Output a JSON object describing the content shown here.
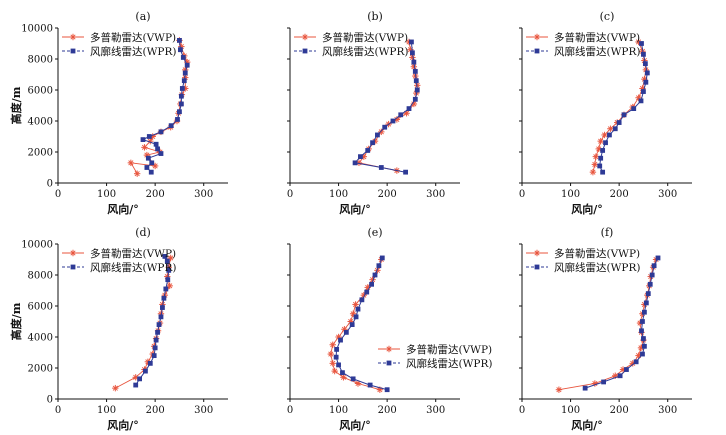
{
  "figure": {
    "legend_vwp": "多普勒雷达(VWP)",
    "legend_wpr": "风廓线雷达(WPR)",
    "xlabel": "风向/°",
    "ylabel": "高度/m",
    "colors": {
      "vwp": "#e8553e",
      "wpr": "#2e3a96"
    }
  },
  "chart_data": [
    {
      "type": "line",
      "label": "(a)",
      "legend_pos": "top-left",
      "xlim": [
        0,
        350
      ],
      "ylim": [
        0,
        10000
      ],
      "xticks": [
        "0",
        "100",
        "200",
        "300"
      ],
      "yticks": [
        "0",
        "2000",
        "4000",
        "6000",
        "8000",
        "10000"
      ],
      "series": [
        {
          "name": "多普勒雷达(VWP)",
          "points": [
            [
              163,
              600
            ],
            [
              150,
              1300
            ],
            [
              200,
              1100
            ],
            [
              183,
              1800
            ],
            [
              210,
              2000
            ],
            [
              178,
              2300
            ],
            [
              190,
              2700
            ],
            [
              195,
              3000
            ],
            [
              212,
              3300
            ],
            [
              232,
              3600
            ],
            [
              245,
              4000
            ],
            [
              248,
              4500
            ],
            [
              252,
              5100
            ],
            [
              255,
              5700
            ],
            [
              262,
              6100
            ],
            [
              262,
              6800
            ],
            [
              262,
              7300
            ],
            [
              266,
              7800
            ],
            [
              260,
              8200
            ],
            [
              254,
              8800
            ],
            [
              250,
              9200
            ]
          ]
        },
        {
          "name": "风廓线雷达(WPR)",
          "points": [
            [
              192,
              700
            ],
            [
              183,
              1000
            ],
            [
              193,
              1300
            ],
            [
              186,
              1600
            ],
            [
              212,
              1900
            ],
            [
              205,
              2200
            ],
            [
              202,
              2500
            ],
            [
              175,
              2800
            ],
            [
              188,
              3000
            ],
            [
              212,
              3300
            ],
            [
              233,
              3700
            ],
            [
              246,
              4100
            ],
            [
              250,
              4600
            ],
            [
              254,
              5100
            ],
            [
              254,
              5600
            ],
            [
              256,
              6100
            ],
            [
              260,
              6600
            ],
            [
              262,
              7100
            ],
            [
              266,
              7600
            ],
            [
              258,
              8100
            ],
            [
              252,
              8600
            ],
            [
              250,
              9200
            ]
          ]
        }
      ]
    },
    {
      "type": "line",
      "label": "(b)",
      "legend_pos": "top-left",
      "xlim": [
        0,
        350
      ],
      "ylim": [
        0,
        10000
      ],
      "xticks": [
        "0",
        "100",
        "200",
        "300"
      ],
      "yticks": [],
      "series": [
        {
          "name": "多普勒雷达(VWP)",
          "points": [
            [
              220,
              800
            ],
            [
              142,
              1300
            ],
            [
              152,
              1700
            ],
            [
              162,
              2200
            ],
            [
              175,
              2700
            ],
            [
              188,
              3300
            ],
            [
              203,
              3800
            ],
            [
              220,
              4100
            ],
            [
              240,
              4500
            ],
            [
              255,
              5100
            ],
            [
              260,
              5800
            ],
            [
              262,
              6300
            ],
            [
              258,
              6900
            ],
            [
              255,
              7500
            ],
            [
              252,
              8100
            ],
            [
              248,
              8600
            ],
            [
              245,
              9100
            ]
          ]
        },
        {
          "name": "风廓线雷达(WPR)",
          "points": [
            [
              238,
              700
            ],
            [
              188,
              1000
            ],
            [
              134,
              1300
            ],
            [
              145,
              1700
            ],
            [
              160,
              2100
            ],
            [
              170,
              2600
            ],
            [
              180,
              3100
            ],
            [
              195,
              3600
            ],
            [
              212,
              4000
            ],
            [
              228,
              4400
            ],
            [
              245,
              4800
            ],
            [
              258,
              5400
            ],
            [
              262,
              6000
            ],
            [
              260,
              6600
            ],
            [
              258,
              7200
            ],
            [
              255,
              7800
            ],
            [
              252,
              8400
            ],
            [
              250,
              9100
            ]
          ]
        }
      ]
    },
    {
      "type": "line",
      "label": "(c)",
      "legend_pos": "top-left",
      "xlim": [
        0,
        350
      ],
      "ylim": [
        0,
        10000
      ],
      "xticks": [
        "0",
        "100",
        "200",
        "300"
      ],
      "yticks": [],
      "series": [
        {
          "name": "多普勒雷达(VWP)",
          "points": [
            [
              146,
              700
            ],
            [
              150,
              1200
            ],
            [
              152,
              1700
            ],
            [
              158,
              2200
            ],
            [
              162,
              2700
            ],
            [
              170,
              3100
            ],
            [
              182,
              3500
            ],
            [
              196,
              3900
            ],
            [
              210,
              4400
            ],
            [
              228,
              4900
            ],
            [
              240,
              5500
            ],
            [
              248,
              6100
            ],
            [
              252,
              6700
            ],
            [
              255,
              7300
            ],
            [
              252,
              7900
            ],
            [
              248,
              8500
            ],
            [
              240,
              9100
            ]
          ]
        },
        {
          "name": "风廓线雷达(WPR)",
          "points": [
            [
              166,
              700
            ],
            [
              160,
              1100
            ],
            [
              162,
              1600
            ],
            [
              166,
              2100
            ],
            [
              172,
              2600
            ],
            [
              180,
              3100
            ],
            [
              192,
              3500
            ],
            [
              200,
              3900
            ],
            [
              210,
              4400
            ],
            [
              230,
              4800
            ],
            [
              245,
              5300
            ],
            [
              250,
              5900
            ],
            [
              255,
              6500
            ],
            [
              258,
              7100
            ],
            [
              254,
              7700
            ],
            [
              250,
              8300
            ],
            [
              246,
              9000
            ]
          ]
        }
      ]
    },
    {
      "type": "line",
      "label": "(d)",
      "legend_pos": "top-left",
      "xlim": [
        0,
        350
      ],
      "ylim": [
        0,
        10000
      ],
      "xticks": [
        "0",
        "100",
        "200",
        "300"
      ],
      "yticks": [
        "0",
        "2000",
        "4000",
        "6000",
        "8000",
        "10000"
      ],
      "series": [
        {
          "name": "多普勒雷达(VWP)",
          "points": [
            [
              118,
              700
            ],
            [
              160,
              1400
            ],
            [
              178,
              1900
            ],
            [
              185,
              2400
            ],
            [
              195,
              2900
            ],
            [
              198,
              3400
            ],
            [
              202,
              3900
            ],
            [
              206,
              4400
            ],
            [
              210,
              4900
            ],
            [
              212,
              5500
            ],
            [
              215,
              6100
            ],
            [
              220,
              6700
            ],
            [
              230,
              7300
            ],
            [
              225,
              7900
            ],
            [
              228,
              8500
            ],
            [
              232,
              9100
            ]
          ]
        },
        {
          "name": "风廓线雷达(WPR)",
          "points": [
            [
              160,
              900
            ],
            [
              168,
              1300
            ],
            [
              180,
              1800
            ],
            [
              190,
              2300
            ],
            [
              198,
              2800
            ],
            [
              200,
              3300
            ],
            [
              202,
              3800
            ],
            [
              205,
              4300
            ],
            [
              208,
              4800
            ],
            [
              212,
              5300
            ],
            [
              215,
              5900
            ],
            [
              218,
              6500
            ],
            [
              222,
              7100
            ],
            [
              226,
              7700
            ],
            [
              228,
              8300
            ],
            [
              225,
              8900
            ],
            [
              220,
              9200
            ]
          ]
        }
      ]
    },
    {
      "type": "line",
      "label": "(e)",
      "legend_pos": "center-right",
      "xlim": [
        0,
        350
      ],
      "ylim": [
        0,
        10000
      ],
      "xticks": [
        "0",
        "100",
        "200",
        "300"
      ],
      "yticks": [],
      "series": [
        {
          "name": "多普勒雷达(VWP)",
          "points": [
            [
              185,
              600
            ],
            [
              140,
              1000
            ],
            [
              110,
              1400
            ],
            [
              92,
              1800
            ],
            [
              88,
              2300
            ],
            [
              84,
              2900
            ],
            [
              88,
              3500
            ],
            [
              100,
              4000
            ],
            [
              112,
              4500
            ],
            [
              125,
              5000
            ],
            [
              130,
              5500
            ],
            [
              135,
              6100
            ],
            [
              152,
              6700
            ],
            [
              160,
              7200
            ],
            [
              170,
              7700
            ],
            [
              180,
              8300
            ],
            [
              188,
              9000
            ]
          ]
        },
        {
          "name": "风廓线雷达(WPR)",
          "points": [
            [
              200,
              600
            ],
            [
              165,
              900
            ],
            [
              130,
              1300
            ],
            [
              108,
              1700
            ],
            [
              100,
              2200
            ],
            [
              95,
              2700
            ],
            [
              96,
              3200
            ],
            [
              104,
              3800
            ],
            [
              116,
              4300
            ],
            [
              128,
              4800
            ],
            [
              136,
              5300
            ],
            [
              140,
              5800
            ],
            [
              148,
              6400
            ],
            [
              158,
              6900
            ],
            [
              168,
              7400
            ],
            [
              175,
              8000
            ],
            [
              183,
              8600
            ],
            [
              190,
              9100
            ]
          ]
        }
      ]
    },
    {
      "type": "line",
      "label": "(f)",
      "legend_pos": "top-left",
      "xlim": [
        0,
        350
      ],
      "ylim": [
        0,
        10000
      ],
      "xticks": [
        "0",
        "100",
        "200",
        "300"
      ],
      "yticks": [],
      "series": [
        {
          "name": "多普勒雷达(VWP)",
          "points": [
            [
              76,
              600
            ],
            [
              150,
              1000
            ],
            [
              192,
              1500
            ],
            [
              208,
              1900
            ],
            [
              228,
              2300
            ],
            [
              240,
              2800
            ],
            [
              245,
              3300
            ],
            [
              250,
              3800
            ],
            [
              246,
              4300
            ],
            [
              243,
              4900
            ],
            [
              248,
              5500
            ],
            [
              252,
              6100
            ],
            [
              258,
              6700
            ],
            [
              262,
              7300
            ],
            [
              265,
              7900
            ],
            [
              270,
              8500
            ],
            [
              276,
              9000
            ]
          ]
        },
        {
          "name": "风廓线雷达(WPR)",
          "points": [
            [
              130,
              700
            ],
            [
              168,
              1100
            ],
            [
              202,
              1500
            ],
            [
              215,
              1900
            ],
            [
              235,
              2400
            ],
            [
              248,
              2900
            ],
            [
              252,
              3400
            ],
            [
              250,
              3900
            ],
            [
              246,
              4400
            ],
            [
              248,
              5000
            ],
            [
              252,
              5600
            ],
            [
              256,
              6200
            ],
            [
              260,
              6800
            ],
            [
              264,
              7400
            ],
            [
              268,
              8000
            ],
            [
              272,
              8600
            ],
            [
              280,
              9100
            ]
          ]
        }
      ]
    }
  ]
}
